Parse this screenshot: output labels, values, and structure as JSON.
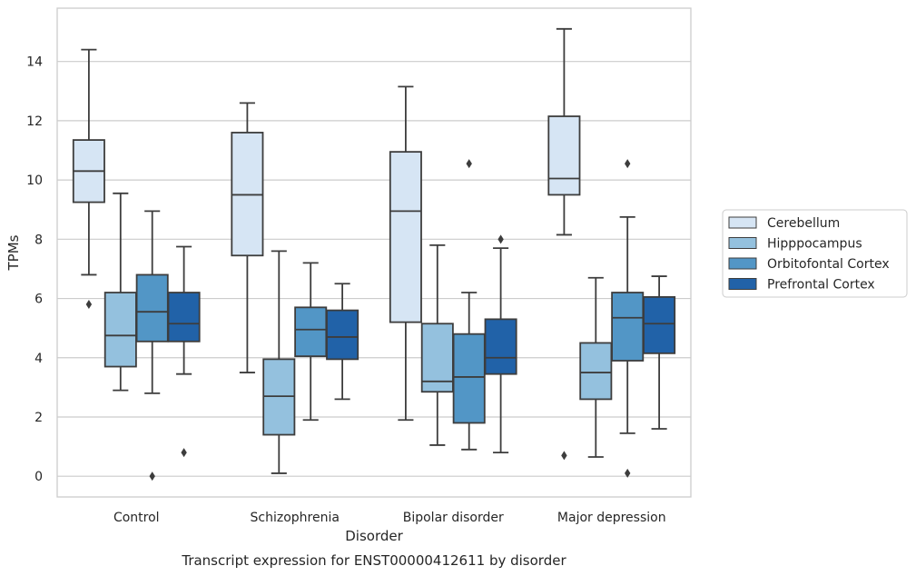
{
  "chart_data": {
    "type": "boxplot",
    "caption": "Transcript expression for ENST00000412611 by disorder",
    "xlabel": "Disorder",
    "ylabel": "TPMs",
    "ylim": [
      -0.7,
      15.8
    ],
    "yticks": [
      0,
      2,
      4,
      6,
      8,
      10,
      12,
      14
    ],
    "grid": "horizontal",
    "legend_position": "right",
    "categories": [
      "Control",
      "Schizophrenia",
      "Bipolar disorder",
      "Major depression"
    ],
    "series": [
      {
        "name": "Cerebellum",
        "color": "#d6e5f4",
        "boxes": [
          {
            "whislo": 6.8,
            "q1": 9.25,
            "med": 10.3,
            "q3": 11.35,
            "whishi": 14.4,
            "fliers": [
              5.8
            ]
          },
          {
            "whislo": 3.5,
            "q1": 7.45,
            "med": 9.5,
            "q3": 11.6,
            "whishi": 12.6,
            "fliers": []
          },
          {
            "whislo": 1.9,
            "q1": 5.2,
            "med": 8.95,
            "q3": 10.95,
            "whishi": 13.15,
            "fliers": []
          },
          {
            "whislo": 8.15,
            "q1": 9.5,
            "med": 10.05,
            "q3": 12.15,
            "whishi": 15.1,
            "fliers": [
              0.7
            ]
          }
        ]
      },
      {
        "name": "Hipppocampus",
        "color": "#94c1de",
        "boxes": [
          {
            "whislo": 2.9,
            "q1": 3.7,
            "med": 4.75,
            "q3": 6.2,
            "whishi": 9.55,
            "fliers": []
          },
          {
            "whislo": 0.1,
            "q1": 1.4,
            "med": 2.7,
            "q3": 3.95,
            "whishi": 7.6,
            "fliers": []
          },
          {
            "whislo": 1.05,
            "q1": 2.85,
            "med": 3.2,
            "q3": 5.15,
            "whishi": 7.8,
            "fliers": []
          },
          {
            "whislo": 0.65,
            "q1": 2.6,
            "med": 3.5,
            "q3": 4.5,
            "whishi": 6.7,
            "fliers": []
          }
        ]
      },
      {
        "name": "Orbitofontal Cortex",
        "color": "#5296c6",
        "boxes": [
          {
            "whislo": 2.8,
            "q1": 4.55,
            "med": 5.55,
            "q3": 6.8,
            "whishi": 8.95,
            "fliers": [
              0.0
            ]
          },
          {
            "whislo": 1.9,
            "q1": 4.05,
            "med": 4.95,
            "q3": 5.7,
            "whishi": 7.2,
            "fliers": []
          },
          {
            "whislo": 0.9,
            "q1": 1.8,
            "med": 3.35,
            "q3": 4.8,
            "whishi": 6.2,
            "fliers": [
              10.55
            ]
          },
          {
            "whislo": 1.45,
            "q1": 3.9,
            "med": 5.35,
            "q3": 6.2,
            "whishi": 8.75,
            "fliers": [
              10.55,
              0.1
            ]
          }
        ]
      },
      {
        "name": "Prefrontal Cortex",
        "color": "#2162a8",
        "boxes": [
          {
            "whislo": 3.45,
            "q1": 4.55,
            "med": 5.15,
            "q3": 6.2,
            "whishi": 7.75,
            "fliers": [
              0.8
            ]
          },
          {
            "whislo": 2.6,
            "q1": 3.95,
            "med": 4.7,
            "q3": 5.6,
            "whishi": 6.5,
            "fliers": []
          },
          {
            "whislo": 0.8,
            "q1": 3.45,
            "med": 4.0,
            "q3": 5.3,
            "whishi": 7.7,
            "fliers": [
              8.0
            ]
          },
          {
            "whislo": 1.6,
            "q1": 4.15,
            "med": 5.15,
            "q3": 6.05,
            "whishi": 6.75,
            "fliers": []
          }
        ]
      }
    ]
  }
}
